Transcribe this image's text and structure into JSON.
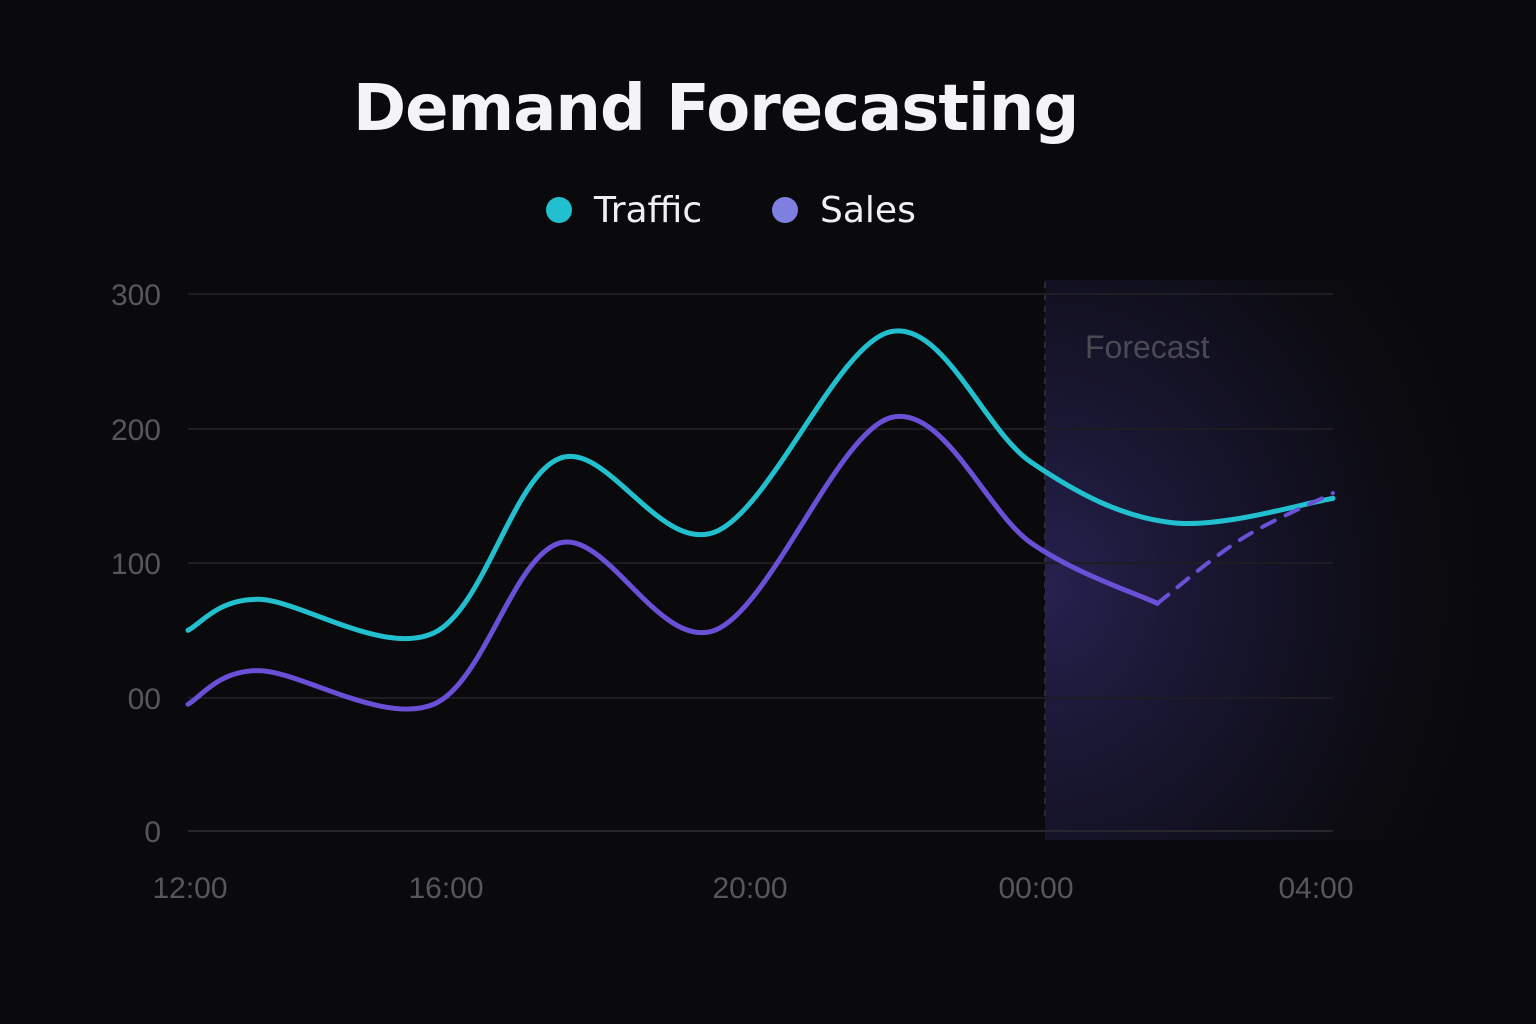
{
  "chart_data": {
    "type": "line",
    "title": "Demand Forecasting",
    "xlabel": "",
    "ylabel": "",
    "x_tick_labels": [
      "12:00",
      "16:00",
      "20:00",
      "00:00",
      "04:00"
    ],
    "y_tick_labels": [
      "0",
      "00",
      "100",
      "200",
      "300"
    ],
    "ylim": [
      0,
      300
    ],
    "grid": true,
    "legend_position": "top-center",
    "forecast_label": "Forecast",
    "forecast_start_x": 12.2,
    "series": [
      {
        "name": "Traffic",
        "color": "#22bfcf",
        "x": [
          0,
          1,
          3.5,
          5.3,
          7.5,
          10,
          12,
          14,
          16.3
        ],
        "values": [
          50,
          73,
          48,
          178,
          123,
          272,
          175,
          130,
          148
        ]
      },
      {
        "name": "Sales",
        "color": "#6a50d6",
        "x": [
          0,
          1,
          3.5,
          5.3,
          7.5,
          10,
          12,
          13.8
        ],
        "values": [
          -5,
          20,
          -5,
          115,
          50,
          208,
          115,
          70
        ]
      },
      {
        "name": "Sales forecast",
        "color": "#6a50d6",
        "dashed": true,
        "x": [
          13.8,
          15,
          16.3
        ],
        "values": [
          70,
          118,
          152
        ]
      }
    ]
  }
}
